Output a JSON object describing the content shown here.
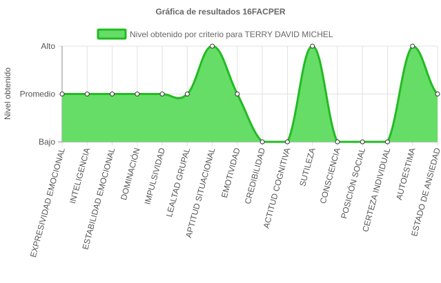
{
  "chart_data": {
    "type": "area",
    "title": "Gráfica de resultados 16FACPER",
    "ylabel": "Nivel obtenido",
    "xlabel": "",
    "y_levels": [
      "Bajo",
      "Promedio",
      "Alto"
    ],
    "ylim": [
      0,
      2
    ],
    "categories": [
      "EXPRESIVIDAD EMOCIONAL",
      "INTELIGENCIA",
      "ESTABILIDAD EMOCIONAL",
      "DOMINACIÓN",
      "IMPULSIVIDAD",
      "LEALTAD GRUPAL",
      "APTITUD SITUACIONAL",
      "EMOTIVIDAD",
      "CREDIBILIDAD",
      "ACTITUD COGNITIVA",
      "SUTILEZA",
      "CONSCIENCIA",
      "POSICIÓN SOCIAL",
      "CERTEZA INDIVIDUAL",
      "AUTOESTIMA",
      "ESTADO DE ANSIEDAD"
    ],
    "series": [
      {
        "name": "Nivel obtenido por criterio para TERRY DAVID MICHEL",
        "values": [
          1,
          1,
          1,
          1,
          1,
          1,
          2,
          1,
          0,
          0,
          2,
          0,
          0,
          0,
          2,
          1
        ]
      }
    ],
    "colors": {
      "fill": "#66dd66",
      "line": "#22bb22",
      "point_fill": "#ffffff",
      "grid": "#e0e0e0",
      "axis": "#888888"
    },
    "grid": true,
    "legend_position": "top"
  }
}
